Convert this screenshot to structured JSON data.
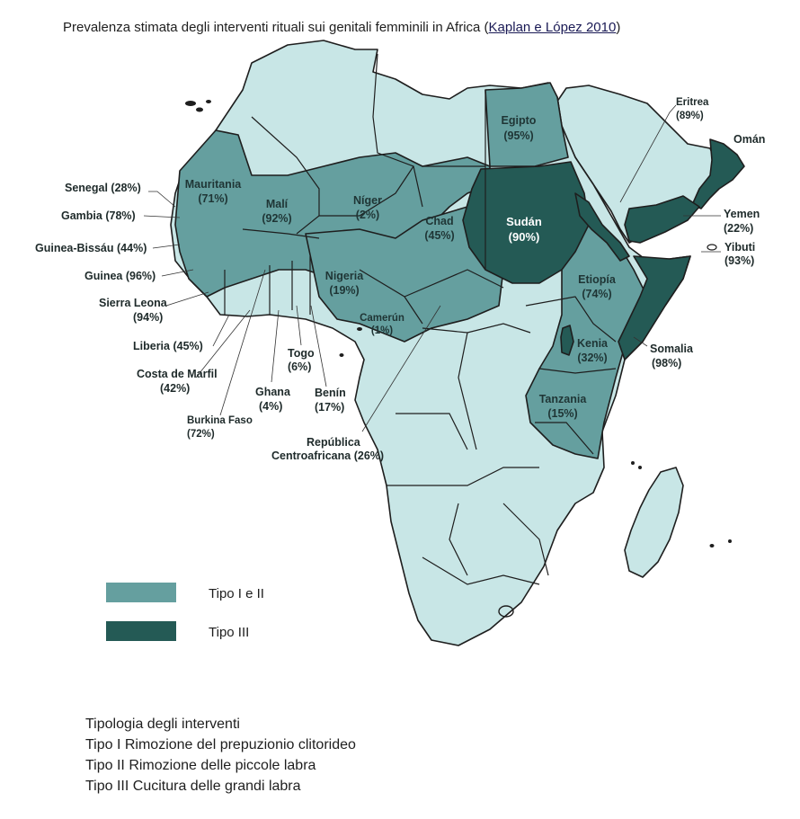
{
  "title": {
    "text": "Prevalenza stimata degli interventi rituali sui genitali femminili in Africa",
    "source_link": "Kaplan e López 2010"
  },
  "colors": {
    "land": "#c8e6e6",
    "tipo_1_2": "#659f9f",
    "tipo_3": "#245a55",
    "border": "#1e1e1e"
  },
  "countries": {
    "senegal": {
      "name": "Senegal",
      "value": "(28%)"
    },
    "gambia": {
      "name": "Gambia",
      "value": "(78%)"
    },
    "guinea_bissau": {
      "name": "Guinea-Bissáu",
      "value": "(44%)"
    },
    "guinea": {
      "name": "Guinea",
      "value": "(96%)"
    },
    "sierra_leona": {
      "name": "Sierra Leona",
      "value": "(94%)"
    },
    "liberia": {
      "name": "Liberia",
      "value": "(45%)"
    },
    "costa_marfil": {
      "name": "Costa de Marfil",
      "value": "(42%)"
    },
    "burkina_faso": {
      "name": "Burkina Faso",
      "value": "(72%)"
    },
    "ghana": {
      "name": "Ghana",
      "value": "(4%)"
    },
    "togo": {
      "name": "Togo",
      "value": "(6%)"
    },
    "benin": {
      "name": "Benín",
      "value": "(17%)"
    },
    "rca": {
      "name": "República",
      "name2": "Centroafricana",
      "value": "(26%)"
    },
    "mauritania": {
      "name": "Mauritania",
      "value": "(71%)"
    },
    "mali": {
      "name": "Malí",
      "value": "(92%)"
    },
    "niger": {
      "name": "Níger",
      "value": "(2%)"
    },
    "nigeria": {
      "name": "Nigeria",
      "value": "(19%)"
    },
    "camerun": {
      "name": "Camerún",
      "value": "(1%)"
    },
    "chad": {
      "name": "Chad",
      "value": "(45%)"
    },
    "sudan": {
      "name": "Sudán",
      "value": "(90%)"
    },
    "egipto": {
      "name": "Egipto",
      "value": "(95%)"
    },
    "etiopia": {
      "name": "Etiopía",
      "value": "(74%)"
    },
    "kenia": {
      "name": "Kenia",
      "value": "(32%)"
    },
    "tanzania": {
      "name": "Tanzania",
      "value": "(15%)"
    },
    "somalia": {
      "name": "Somalia",
      "value": "(98%)"
    },
    "eritrea": {
      "name": "Eritrea",
      "value": "(89%)"
    },
    "yibuti": {
      "name": "Yibuti",
      "value": "(93%)"
    },
    "yemen": {
      "name": "Yemen",
      "value": "(22%)"
    },
    "oman": {
      "name": "Omán"
    }
  },
  "legend": {
    "tipo_1_2": "Tipo I e II",
    "tipo_3": "Tipo III"
  },
  "notes": [
    "Tipologia degli interventi",
    "Tipo I Rimozione del prepuzionio clitorideo",
    "Tipo II Rimozione delle piccole labra",
    "Tipo III Cucitura delle grandi labra"
  ]
}
